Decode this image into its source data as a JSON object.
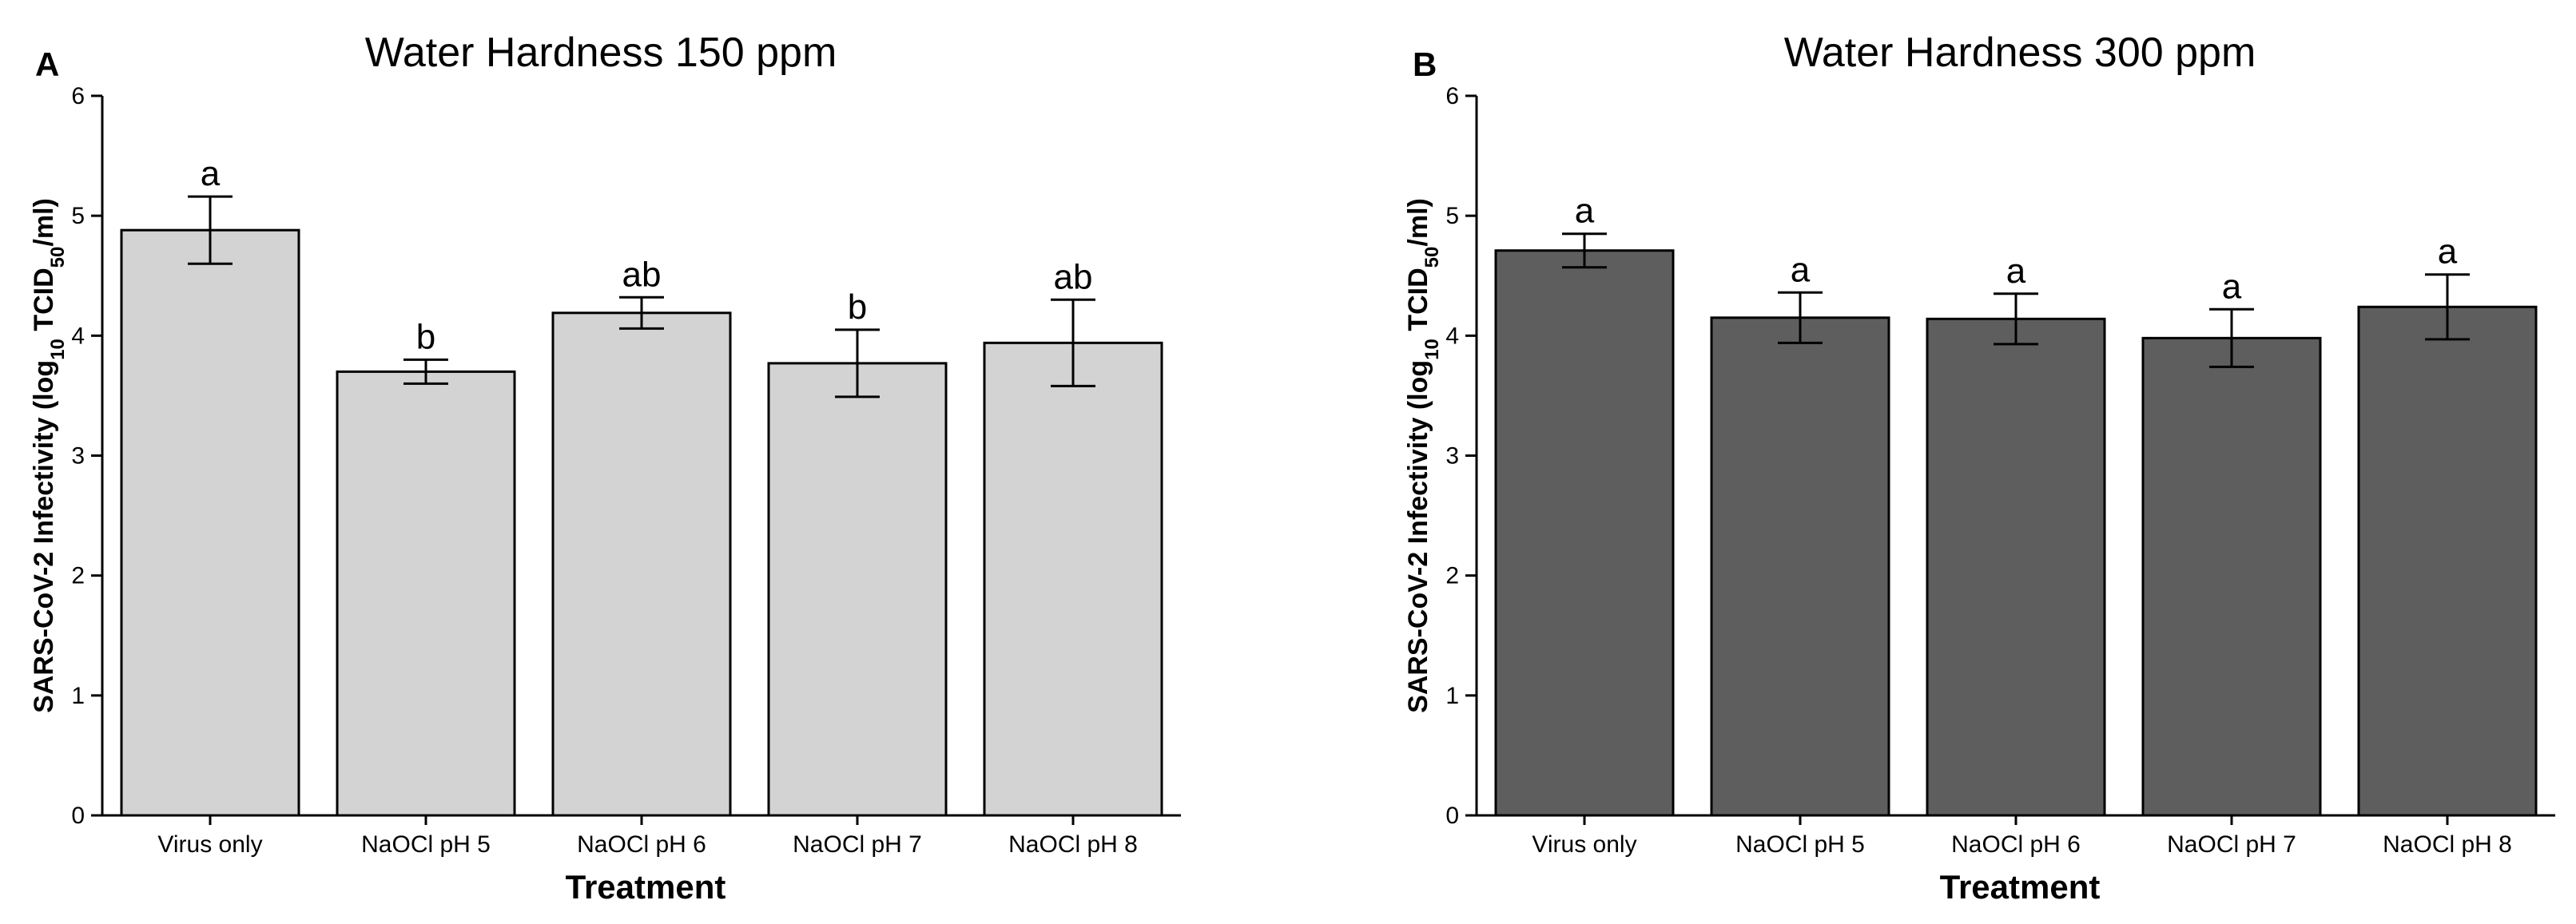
{
  "chart_data": [
    {
      "panel_label": "A",
      "type": "bar",
      "title": "Water Hardness 150 ppm",
      "xlabel": "Treatment",
      "ylabel_parts": [
        "SARS-CoV-2 Infectivity (log",
        "10",
        " TCID",
        "50",
        "/ml)"
      ],
      "ylim": [
        0,
        6
      ],
      "yticks": [
        "0",
        "1",
        "2",
        "3",
        "4",
        "5",
        "6"
      ],
      "categories": [
        "Virus only",
        "NaOCl pH 5",
        "NaOCl pH 6",
        "NaOCl pH 7",
        "NaOCl pH 8"
      ],
      "values": [
        4.88,
        3.7,
        4.19,
        3.77,
        3.94
      ],
      "error_low": [
        4.6,
        3.6,
        4.06,
        3.49,
        3.58
      ],
      "error_high": [
        5.16,
        3.8,
        4.32,
        4.05,
        4.3
      ],
      "letters": [
        "a",
        "b",
        "ab",
        "b",
        "ab"
      ],
      "bar_color": "#d3d3d3",
      "grid": false
    },
    {
      "panel_label": "B",
      "type": "bar",
      "title": "Water Hardness 300 ppm",
      "xlabel": "Treatment",
      "ylabel_parts": [
        "SARS-CoV-2 Infectivity (log",
        "10",
        " TCID",
        "50",
        "/ml)"
      ],
      "ylim": [
        0,
        6
      ],
      "yticks": [
        "0",
        "1",
        "2",
        "3",
        "4",
        "5",
        "6"
      ],
      "categories": [
        "Virus only",
        "NaOCl pH 5",
        "NaOCl pH 6",
        "NaOCl pH 7",
        "NaOCl pH 8"
      ],
      "values": [
        4.71,
        4.15,
        4.14,
        3.98,
        4.24
      ],
      "error_low": [
        4.57,
        3.94,
        3.93,
        3.74,
        3.97
      ],
      "error_high": [
        4.85,
        4.36,
        4.35,
        4.22,
        4.51
      ],
      "letters": [
        "a",
        "a",
        "a",
        "a",
        "a"
      ],
      "bar_color": "#5e5e5e",
      "grid": false
    }
  ]
}
